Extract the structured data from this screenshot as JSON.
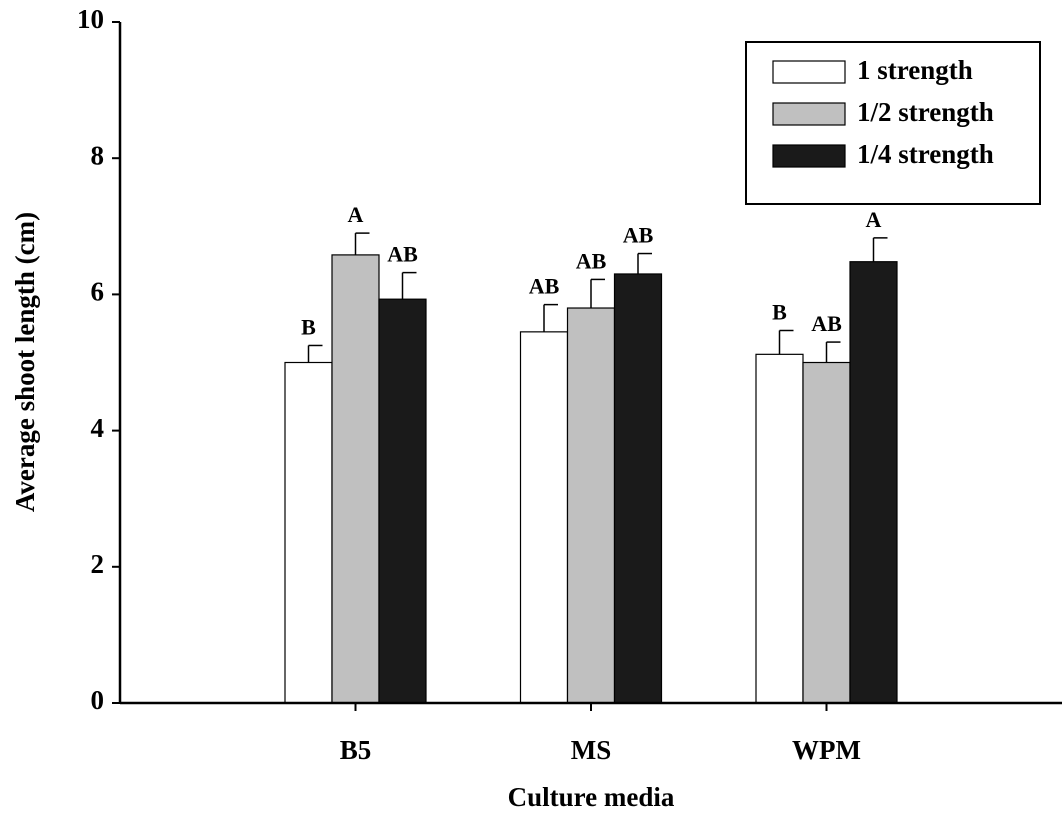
{
  "chart_data": {
    "type": "bar",
    "x_label": "Culture media",
    "y_label": "Average shoot length (cm)",
    "categories": [
      "B5",
      "MS",
      "WPM"
    ],
    "series": [
      {
        "name": "1 strength",
        "color": "#ffffff",
        "values": [
          5.0,
          5.45,
          5.12
        ],
        "errors": [
          0.25,
          0.4,
          0.35
        ],
        "letters": [
          "B",
          "AB",
          "B"
        ]
      },
      {
        "name": "1/2 strength",
        "color": "#c0c0c0",
        "values": [
          6.58,
          5.8,
          5.0
        ],
        "errors": [
          0.32,
          0.42,
          0.3
        ],
        "letters": [
          "A",
          "AB",
          "AB"
        ]
      },
      {
        "name": "1/4 strength",
        "color": "#1a1a1a",
        "values": [
          5.93,
          6.3,
          6.48
        ],
        "errors": [
          0.39,
          0.3,
          0.35
        ],
        "letters": [
          "AB",
          "AB",
          "A"
        ]
      }
    ],
    "ylim": [
      0,
      10
    ],
    "yticks": [
      0,
      2,
      4,
      6,
      8,
      10
    ],
    "legend": "upper-right",
    "grid": false
  }
}
